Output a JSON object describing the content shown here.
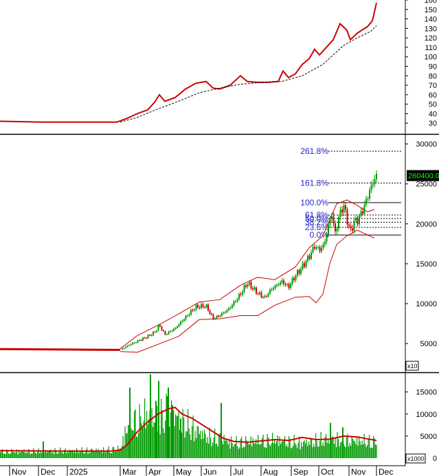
{
  "chart_data": [
    {
      "type": "line",
      "title": "",
      "ylim": [
        20,
        160
      ],
      "y_ticks": [
        30,
        40,
        50,
        60,
        70,
        80,
        90,
        100,
        110,
        120,
        130,
        140,
        150,
        160
      ],
      "grid": false,
      "series": [
        {
          "color": "#cc0000",
          "style": "solid",
          "points": [
            [
              0,
              32
            ],
            [
              60,
              31
            ],
            [
              120,
              31
            ],
            [
              170,
              31
            ],
            [
              185,
              35
            ],
            [
              200,
              40
            ],
            [
              215,
              44
            ],
            [
              225,
              52
            ],
            [
              232,
              60
            ],
            [
              240,
              53
            ],
            [
              255,
              57
            ],
            [
              270,
              66
            ],
            [
              285,
              72
            ],
            [
              300,
              74
            ],
            [
              310,
              67
            ],
            [
              320,
              66
            ],
            [
              335,
              70
            ],
            [
              350,
              80
            ],
            [
              360,
              74
            ],
            [
              375,
              73
            ],
            [
              390,
              73
            ],
            [
              405,
              74
            ],
            [
              412,
              85
            ],
            [
              420,
              78
            ],
            [
              430,
              82
            ],
            [
              440,
              92
            ],
            [
              450,
              98
            ],
            [
              458,
              108
            ],
            [
              465,
              102
            ],
            [
              475,
              110
            ],
            [
              485,
              118
            ],
            [
              495,
              135
            ],
            [
              505,
              128
            ],
            [
              510,
              118
            ],
            [
              520,
              125
            ],
            [
              535,
              132
            ],
            [
              542,
              138
            ],
            [
              548,
              157
            ]
          ]
        },
        {
          "color": "#000000",
          "style": "dashed",
          "points": [
            [
              175,
              31
            ],
            [
              200,
              36
            ],
            [
              230,
              45
            ],
            [
              260,
              53
            ],
            [
              290,
              62
            ],
            [
              320,
              67
            ],
            [
              350,
              71
            ],
            [
              380,
              73
            ],
            [
              410,
              74
            ],
            [
              440,
              80
            ],
            [
              470,
              92
            ],
            [
              500,
              112
            ],
            [
              520,
              120
            ],
            [
              540,
              127
            ],
            [
              548,
              133
            ]
          ]
        }
      ]
    },
    {
      "type": "candlestick",
      "ylim": [
        2000,
        31000
      ],
      "y_ticks": [
        5000,
        10000,
        15000,
        20000,
        25000,
        30000
      ],
      "y_unit_label": "x10",
      "last_price_label": "260400.0",
      "last_price": 26040,
      "price_path": [
        [
          0,
          4300
        ],
        [
          100,
          4250
        ],
        [
          175,
          4200
        ],
        [
          185,
          4700
        ],
        [
          200,
          5300
        ],
        [
          215,
          5900
        ],
        [
          225,
          6400
        ],
        [
          232,
          7300
        ],
        [
          240,
          6100
        ],
        [
          255,
          6900
        ],
        [
          270,
          8300
        ],
        [
          285,
          9600
        ],
        [
          300,
          9700
        ],
        [
          310,
          8100
        ],
        [
          320,
          8500
        ],
        [
          335,
          9500
        ],
        [
          350,
          11200
        ],
        [
          360,
          12600
        ],
        [
          375,
          11300
        ],
        [
          385,
          10700
        ],
        [
          395,
          11800
        ],
        [
          410,
          12800
        ],
        [
          420,
          12100
        ],
        [
          430,
          13500
        ],
        [
          440,
          14600
        ],
        [
          450,
          15900
        ],
        [
          458,
          17200
        ],
        [
          465,
          16700
        ],
        [
          472,
          17400
        ],
        [
          478,
          19800
        ],
        [
          483,
          21200
        ],
        [
          488,
          18800
        ],
        [
          493,
          20800
        ],
        [
          500,
          22400
        ],
        [
          506,
          20300
        ],
        [
          510,
          18900
        ],
        [
          515,
          20200
        ],
        [
          522,
          20600
        ],
        [
          530,
          22100
        ],
        [
          537,
          23900
        ],
        [
          543,
          25200
        ],
        [
          548,
          26100
        ]
      ],
      "bollinger_upper": [
        [
          175,
          4350
        ],
        [
          200,
          6000
        ],
        [
          230,
          7300
        ],
        [
          260,
          8700
        ],
        [
          290,
          10200
        ],
        [
          320,
          10500
        ],
        [
          350,
          12300
        ],
        [
          375,
          13300
        ],
        [
          400,
          13000
        ],
        [
          430,
          14600
        ],
        [
          450,
          17000
        ],
        [
          470,
          18500
        ],
        [
          490,
          22500
        ],
        [
          505,
          23000
        ],
        [
          520,
          22300
        ],
        [
          535,
          21500
        ],
        [
          545,
          21800
        ]
      ],
      "bollinger_lower": [
        [
          175,
          4000
        ],
        [
          200,
          3900
        ],
        [
          230,
          4900
        ],
        [
          260,
          5900
        ],
        [
          290,
          8000
        ],
        [
          320,
          8100
        ],
        [
          350,
          8500
        ],
        [
          375,
          8500
        ],
        [
          400,
          9800
        ],
        [
          430,
          10800
        ],
        [
          450,
          10900
        ],
        [
          460,
          10100
        ],
        [
          470,
          11200
        ],
        [
          480,
          15000
        ],
        [
          490,
          17400
        ],
        [
          505,
          18500
        ],
        [
          520,
          19200
        ],
        [
          535,
          18600
        ],
        [
          545,
          18200
        ]
      ],
      "fibonacci": [
        {
          "label": "261.8%",
          "value": 29100
        },
        {
          "label": "161.8%",
          "value": 25100
        },
        {
          "label": "100.0%",
          "value": 22650
        },
        {
          "label": "61.8%",
          "value": 21100
        },
        {
          "label": "50.0%",
          "value": 20650
        },
        {
          "label": "38.2%",
          "value": 20200
        },
        {
          "label": "23.6%",
          "value": 19550
        },
        {
          "label": "0.0%",
          "value": 18600
        }
      ]
    },
    {
      "type": "bar",
      "ylim": [
        0,
        19000
      ],
      "y_ticks": [
        0,
        5000,
        10000,
        15000
      ],
      "y_unit_label": "x1000",
      "bar_color": "#009900",
      "ma_color": "#cc0000",
      "volume_profile": [
        [
          0,
          1500
        ],
        [
          60,
          1600
        ],
        [
          100,
          1700
        ],
        [
          150,
          1800
        ],
        [
          175,
          2200
        ],
        [
          182,
          6000
        ],
        [
          190,
          9000
        ],
        [
          200,
          8500
        ],
        [
          210,
          10000
        ],
        [
          220,
          9000
        ],
        [
          230,
          9500
        ],
        [
          245,
          10500
        ],
        [
          260,
          9000
        ],
        [
          280,
          7000
        ],
        [
          300,
          5000
        ],
        [
          320,
          4500
        ],
        [
          340,
          3500
        ],
        [
          360,
          3800
        ],
        [
          380,
          4000
        ],
        [
          400,
          4200
        ],
        [
          420,
          3800
        ],
        [
          440,
          3500
        ],
        [
          460,
          4000
        ],
        [
          480,
          4500
        ],
        [
          500,
          4200
        ],
        [
          520,
          4000
        ],
        [
          548,
          3800
        ]
      ],
      "volume_spikes": [
        [
          62,
          3800
        ],
        [
          188,
          16000
        ],
        [
          218,
          19000
        ],
        [
          226,
          13000
        ],
        [
          230,
          17500
        ],
        [
          244,
          16000
        ],
        [
          242,
          14000
        ],
        [
          250,
          12000
        ],
        [
          262,
          9000
        ],
        [
          321,
          12500
        ],
        [
          480,
          8000
        ],
        [
          498,
          7000
        ]
      ],
      "ma_path": [
        [
          0,
          1700
        ],
        [
          100,
          1600
        ],
        [
          160,
          1600
        ],
        [
          175,
          1800
        ],
        [
          185,
          3000
        ],
        [
          200,
          6000
        ],
        [
          215,
          8200
        ],
        [
          230,
          10000
        ],
        [
          245,
          11200
        ],
        [
          255,
          11500
        ],
        [
          265,
          10000
        ],
        [
          280,
          9000
        ],
        [
          295,
          7500
        ],
        [
          310,
          6000
        ],
        [
          325,
          4500
        ],
        [
          340,
          3800
        ],
        [
          360,
          3600
        ],
        [
          380,
          3900
        ],
        [
          400,
          4200
        ],
        [
          420,
          4000
        ],
        [
          440,
          4700
        ],
        [
          460,
          4200
        ],
        [
          480,
          4300
        ],
        [
          500,
          5000
        ],
        [
          520,
          4800
        ],
        [
          548,
          4000
        ]
      ]
    }
  ],
  "x_axis": {
    "labels": [
      "Nov",
      "Dec",
      "2025",
      "Mar",
      "Apr",
      "May",
      "Jun",
      "Jul",
      "Aug",
      "Sep",
      "Oct",
      "Nov",
      "Dec"
    ]
  }
}
